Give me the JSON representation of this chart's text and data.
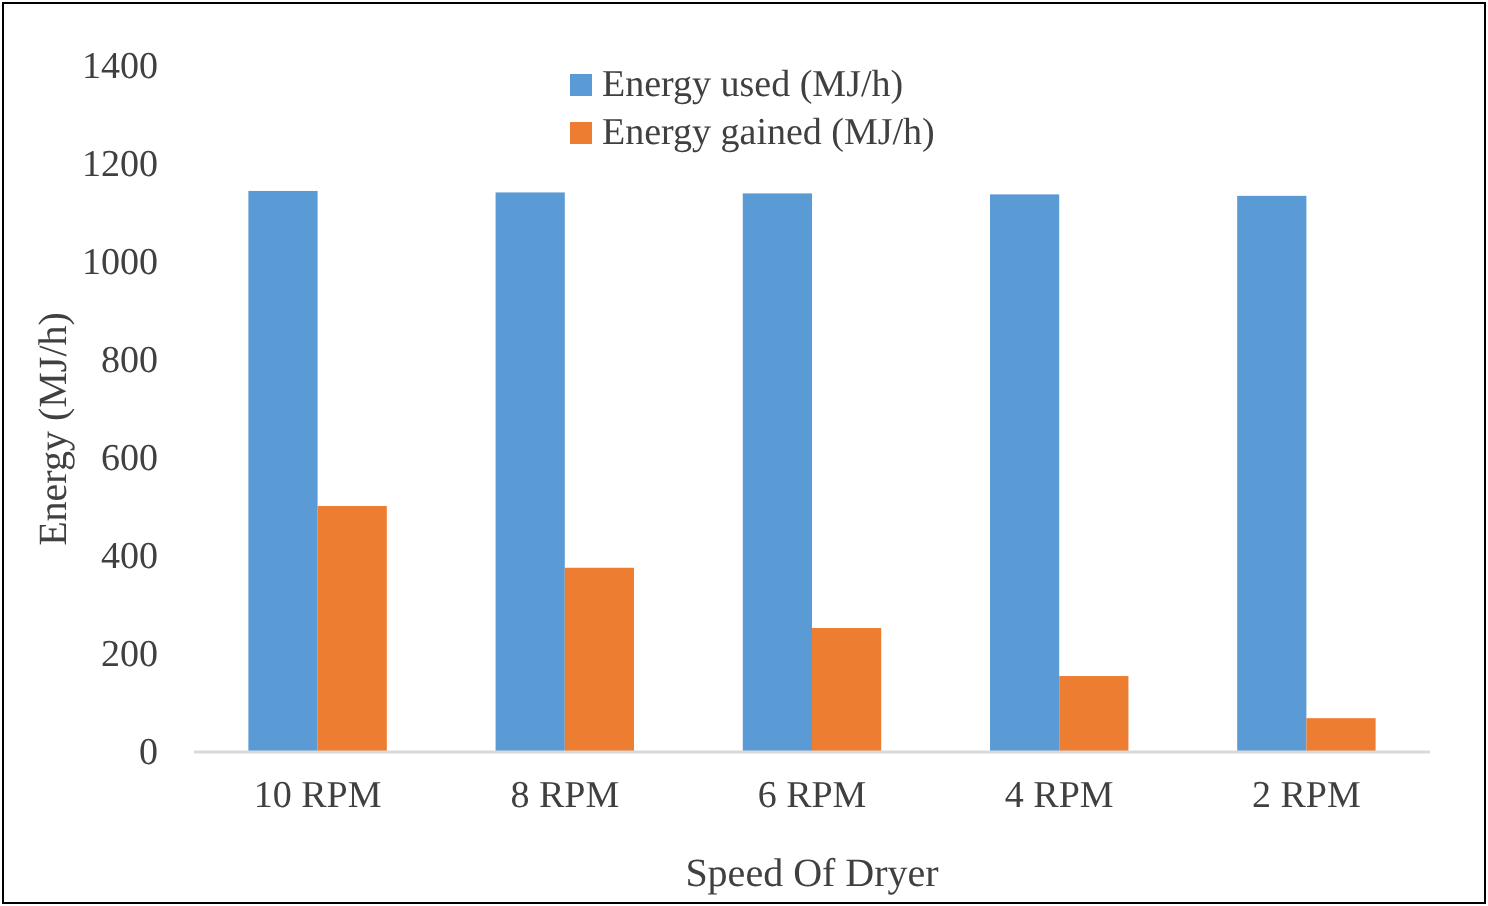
{
  "chart_data": {
    "type": "bar",
    "categories": [
      "10 RPM",
      "8 RPM",
      "6 RPM",
      "4 RPM",
      "2 RPM"
    ],
    "series": [
      {
        "name": "Energy used (MJ/h)",
        "color": "#5b9bd5",
        "values": [
          1145,
          1142,
          1140,
          1138,
          1135
        ]
      },
      {
        "name": "Energy gained (MJ/h)",
        "color": "#ed7d31",
        "values": [
          502,
          376,
          253,
          155,
          69
        ]
      }
    ],
    "xlabel": "Speed Of Dryer",
    "ylabel": "Energy (MJ/h)",
    "ylim": [
      0,
      1400
    ],
    "yticks": [
      0,
      200,
      400,
      600,
      800,
      1000,
      1200,
      1400
    ],
    "grid": false,
    "legend": "top"
  }
}
